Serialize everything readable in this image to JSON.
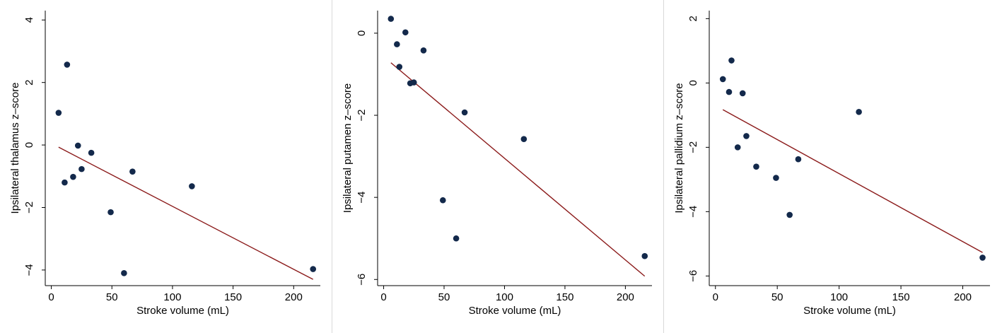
{
  "chart_data": [
    {
      "type": "scatter",
      "title": "",
      "xlabel": "Stroke volume (mL)",
      "ylabel": "Ipsilateral thalamus z–score",
      "xlim": [
        -5,
        222
      ],
      "ylim": [
        -4.5,
        4.3
      ],
      "xticks": [
        0,
        50,
        100,
        150,
        200
      ],
      "yticks": [
        -4,
        -2,
        0,
        2,
        4
      ],
      "ytick_labels": [
        "−4",
        "−2",
        "0",
        "2",
        "4"
      ],
      "marker_color": "#13294b",
      "line_color": "#8b1a1a",
      "points": [
        {
          "x": 6,
          "y": 1.03
        },
        {
          "x": 11,
          "y": -1.2
        },
        {
          "x": 13,
          "y": 2.57
        },
        {
          "x": 18,
          "y": -1.02
        },
        {
          "x": 22,
          "y": -0.02
        },
        {
          "x": 25,
          "y": -0.77
        },
        {
          "x": 33,
          "y": -0.25
        },
        {
          "x": 49,
          "y": -2.15
        },
        {
          "x": 60,
          "y": -4.1
        },
        {
          "x": 67,
          "y": -0.85
        },
        {
          "x": 116,
          "y": -1.32
        },
        {
          "x": 216,
          "y": -3.97
        }
      ],
      "fit_line": [
        {
          "x": 6,
          "y": -0.07
        },
        {
          "x": 216,
          "y": -4.3
        }
      ]
    },
    {
      "type": "scatter",
      "title": "",
      "xlabel": "Stroke volume (mL)",
      "ylabel": "Ipsilateral putamen z–score",
      "xlim": [
        -5,
        222
      ],
      "ylim": [
        -6.15,
        0.55
      ],
      "xticks": [
        0,
        50,
        100,
        150,
        200
      ],
      "yticks": [
        -6,
        -4,
        -2,
        0
      ],
      "ytick_labels": [
        "−6",
        "−4",
        "−2",
        "0"
      ],
      "marker_color": "#13294b",
      "line_color": "#8b1a1a",
      "points": [
        {
          "x": 6,
          "y": 0.35
        },
        {
          "x": 11,
          "y": -0.27
        },
        {
          "x": 13,
          "y": -0.82
        },
        {
          "x": 18,
          "y": 0.02
        },
        {
          "x": 22,
          "y": -1.22
        },
        {
          "x": 25,
          "y": -1.2
        },
        {
          "x": 33,
          "y": -0.42
        },
        {
          "x": 49,
          "y": -4.07
        },
        {
          "x": 60,
          "y": -5.0
        },
        {
          "x": 67,
          "y": -1.93
        },
        {
          "x": 116,
          "y": -2.58
        },
        {
          "x": 216,
          "y": -5.43
        }
      ],
      "fit_line": [
        {
          "x": 6,
          "y": -0.72
        },
        {
          "x": 216,
          "y": -5.92
        }
      ]
    },
    {
      "type": "scatter",
      "title": "",
      "xlabel": "Stroke volume (mL)",
      "ylabel": "Ipsilateral pallidium z–score",
      "xlim": [
        -5,
        222
      ],
      "ylim": [
        -6.3,
        2.25
      ],
      "xticks": [
        0,
        50,
        100,
        150,
        200
      ],
      "yticks": [
        -6,
        -4,
        -2,
        0,
        2
      ],
      "ytick_labels": [
        "−6",
        "−4",
        "−2",
        "0",
        "2"
      ],
      "marker_color": "#13294b",
      "line_color": "#8b1a1a",
      "points": [
        {
          "x": 6,
          "y": 0.12
        },
        {
          "x": 11,
          "y": -0.28
        },
        {
          "x": 13,
          "y": 0.7
        },
        {
          "x": 18,
          "y": -2.0
        },
        {
          "x": 22,
          "y": -0.32
        },
        {
          "x": 25,
          "y": -1.65
        },
        {
          "x": 33,
          "y": -2.6
        },
        {
          "x": 49,
          "y": -2.95
        },
        {
          "x": 60,
          "y": -4.1
        },
        {
          "x": 67,
          "y": -2.37
        },
        {
          "x": 116,
          "y": -0.9
        },
        {
          "x": 216,
          "y": -5.43
        }
      ],
      "fit_line": [
        {
          "x": 6,
          "y": -0.83
        },
        {
          "x": 216,
          "y": -5.27
        }
      ]
    }
  ]
}
